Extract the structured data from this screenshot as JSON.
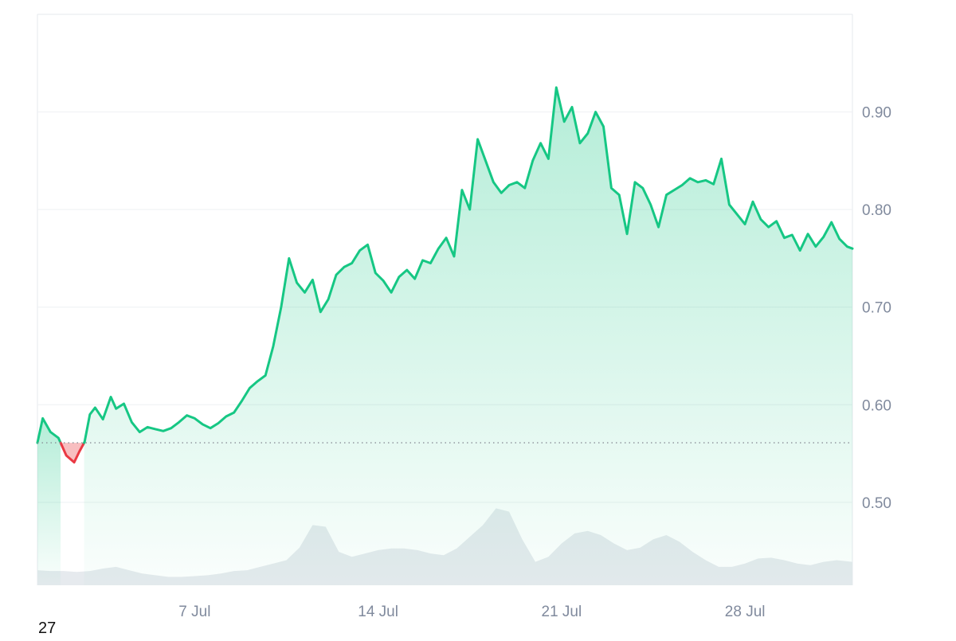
{
  "chart_data": {
    "type": "area",
    "ylim": [
      0.415,
      1.0
    ],
    "y_ticks": [
      0.5,
      0.6,
      0.7,
      0.8,
      0.9
    ],
    "y_tick_labels": [
      "0.50",
      "0.60",
      "0.70",
      "0.80",
      "0.90"
    ],
    "x_ticks": [
      "7 Jul",
      "14 Jul",
      "21 Jul",
      "28 Jul"
    ],
    "x_tick_days": [
      7,
      14,
      21,
      28
    ],
    "x_range_days": [
      1.0,
      32.1
    ],
    "baseline": 0.561,
    "grid": true,
    "price_series": {
      "day": [
        1.0,
        1.2,
        1.5,
        1.8,
        2.1,
        2.4,
        2.6,
        2.8,
        3.0,
        3.2,
        3.5,
        3.8,
        4.0,
        4.3,
        4.6,
        4.9,
        5.2,
        5.5,
        5.8,
        6.1,
        6.4,
        6.7,
        7.0,
        7.3,
        7.6,
        7.9,
        8.2,
        8.5,
        8.8,
        9.1,
        9.4,
        9.7,
        10.0,
        10.3,
        10.6,
        10.9,
        11.2,
        11.5,
        11.8,
        12.1,
        12.4,
        12.7,
        13.0,
        13.3,
        13.6,
        13.9,
        14.2,
        14.5,
        14.8,
        15.1,
        15.4,
        15.7,
        16.0,
        16.3,
        16.6,
        16.9,
        17.2,
        17.5,
        17.8,
        18.1,
        18.4,
        18.7,
        19.0,
        19.3,
        19.6,
        19.9,
        20.2,
        20.5,
        20.8,
        21.1,
        21.4,
        21.7,
        22.0,
        22.3,
        22.6,
        22.9,
        23.2,
        23.5,
        23.8,
        24.1,
        24.4,
        24.7,
        25.0,
        25.3,
        25.6,
        25.9,
        26.2,
        26.5,
        26.8,
        27.1,
        27.4,
        27.7,
        28.0,
        28.3,
        28.6,
        28.9,
        29.2,
        29.5,
        29.8,
        30.1,
        30.4,
        30.7,
        31.0,
        31.3,
        31.6,
        31.9,
        32.1
      ],
      "value": [
        0.561,
        0.586,
        0.572,
        0.566,
        0.548,
        0.541,
        0.552,
        0.562,
        0.59,
        0.597,
        0.585,
        0.608,
        0.596,
        0.601,
        0.582,
        0.572,
        0.577,
        0.575,
        0.573,
        0.576,
        0.582,
        0.589,
        0.586,
        0.58,
        0.576,
        0.581,
        0.588,
        0.592,
        0.604,
        0.617,
        0.624,
        0.63,
        0.66,
        0.7,
        0.75,
        0.725,
        0.715,
        0.728,
        0.695,
        0.708,
        0.733,
        0.741,
        0.745,
        0.758,
        0.764,
        0.735,
        0.727,
        0.715,
        0.731,
        0.738,
        0.729,
        0.748,
        0.745,
        0.76,
        0.771,
        0.752,
        0.82,
        0.8,
        0.872,
        0.85,
        0.828,
        0.817,
        0.825,
        0.828,
        0.822,
        0.85,
        0.868,
        0.852,
        0.925,
        0.89,
        0.905,
        0.868,
        0.878,
        0.9,
        0.885,
        0.822,
        0.815,
        0.775,
        0.828,
        0.822,
        0.805,
        0.782,
        0.815,
        0.82,
        0.825,
        0.832,
        0.828,
        0.83,
        0.826,
        0.852,
        0.805,
        0.795,
        0.785,
        0.808,
        0.79,
        0.782,
        0.788,
        0.771,
        0.774,
        0.758,
        0.775,
        0.762,
        0.772,
        0.787,
        0.77,
        0.762,
        0.76
      ]
    },
    "volume_series": {
      "day": [
        1.0,
        1.5,
        2.0,
        2.5,
        3.0,
        3.5,
        4.0,
        4.5,
        5.0,
        5.5,
        6.0,
        6.5,
        7.0,
        7.5,
        8.0,
        8.5,
        9.0,
        9.5,
        10.0,
        10.5,
        11.0,
        11.5,
        12.0,
        12.5,
        13.0,
        13.5,
        14.0,
        14.5,
        15.0,
        15.5,
        16.0,
        16.5,
        17.0,
        17.5,
        18.0,
        18.5,
        19.0,
        19.5,
        20.0,
        20.5,
        21.0,
        21.5,
        22.0,
        22.5,
        23.0,
        23.5,
        24.0,
        24.5,
        25.0,
        25.5,
        26.0,
        26.5,
        27.0,
        27.5,
        28.0,
        28.5,
        29.0,
        29.5,
        30.0,
        30.5,
        31.0,
        31.5,
        32.1
      ],
      "value": [
        0.18,
        0.17,
        0.17,
        0.16,
        0.17,
        0.2,
        0.22,
        0.18,
        0.14,
        0.12,
        0.1,
        0.1,
        0.11,
        0.12,
        0.14,
        0.17,
        0.18,
        0.22,
        0.26,
        0.3,
        0.45,
        0.72,
        0.7,
        0.4,
        0.34,
        0.38,
        0.42,
        0.44,
        0.44,
        0.42,
        0.38,
        0.36,
        0.44,
        0.58,
        0.72,
        0.92,
        0.88,
        0.55,
        0.28,
        0.34,
        0.5,
        0.62,
        0.65,
        0.6,
        0.5,
        0.42,
        0.45,
        0.55,
        0.6,
        0.52,
        0.4,
        0.3,
        0.22,
        0.22,
        0.26,
        0.32,
        0.33,
        0.3,
        0.26,
        0.24,
        0.28,
        0.3,
        0.28
      ]
    },
    "colors": {
      "up_line": "#16c784",
      "down_line": "#ea3943",
      "down_fill": "#f5a8ab",
      "volume_fill": "#e6eaee",
      "grid": "#eef0f3",
      "frame": "#e6e9ee",
      "tick_text": "#808a9d",
      "baseline": "#8a8f98"
    }
  },
  "footer_label": "27"
}
